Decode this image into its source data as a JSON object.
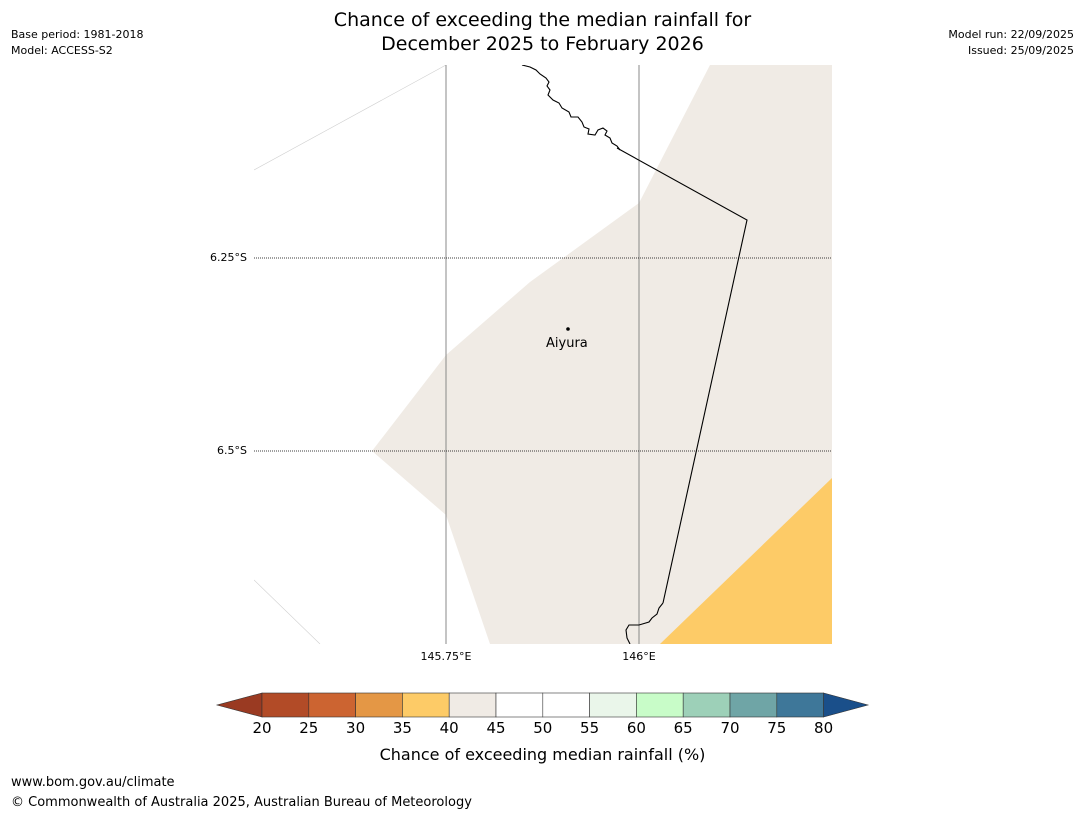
{
  "header": {
    "title_line1": "Chance of exceeding the median rainfall for",
    "title_line2": "December 2025 to February 2026",
    "base_period": "Base period: 1981-2018",
    "model": "Model: ACCESS-S2",
    "model_run": "Model run: 22/09/2025",
    "issued": "Issued: 25/09/2025"
  },
  "map": {
    "latitude_labels": [
      "6.25°S",
      "6.5°S"
    ],
    "longitude_labels": [
      "145.75°E",
      "146°E"
    ],
    "place": {
      "name": "Aiyura",
      "lat": -6.35,
      "lon": 145.9
    },
    "background_class": "40-45",
    "region_colors": {
      "class_40_45": "#f0ebe5",
      "class_35_40": "#fdcb67"
    }
  },
  "colorbar": {
    "title": "Chance of exceeding median rainfall (%)",
    "tick_labels": [
      "20",
      "25",
      "30",
      "35",
      "40",
      "45",
      "50",
      "55",
      "60",
      "65",
      "70",
      "75",
      "80"
    ],
    "colors": [
      "#9a3a22",
      "#b24b27",
      "#cc6431",
      "#e49745",
      "#fdcb67",
      "#f0ebe5",
      "#ffffff",
      "#ffffff",
      "#eaf6ea",
      "#c8fcc8",
      "#9dd0b8",
      "#6fa5a6",
      "#3e7799",
      "#1a4f8a"
    ]
  },
  "footer": {
    "url": "www.bom.gov.au/climate",
    "copyright": "© Commonwealth of Australia 2025, Australian Bureau of Meteorology"
  }
}
